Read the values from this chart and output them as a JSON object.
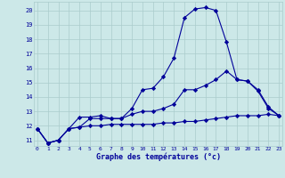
{
  "title": "Graphe des températures (°c)",
  "background_color": "#cce8e8",
  "grid_color": "#aacccc",
  "line_color": "#000099",
  "x_ticks": [
    0,
    1,
    2,
    3,
    4,
    5,
    6,
    7,
    8,
    9,
    10,
    11,
    12,
    13,
    14,
    15,
    16,
    17,
    18,
    19,
    20,
    21,
    22,
    23
  ],
  "y_ticks": [
    11,
    12,
    13,
    14,
    15,
    16,
    17,
    18,
    19,
    20
  ],
  "xlim": [
    -0.3,
    23.3
  ],
  "ylim": [
    10.6,
    20.6
  ],
  "line1_x": [
    0,
    1,
    2,
    3,
    4,
    5,
    6,
    7,
    8,
    9,
    10,
    11,
    12,
    13,
    14,
    15,
    16,
    17,
    18,
    19,
    20,
    21,
    22,
    23
  ],
  "line1_y": [
    11.8,
    10.8,
    11.0,
    11.8,
    12.6,
    12.6,
    12.7,
    12.5,
    12.5,
    13.2,
    14.5,
    14.6,
    15.4,
    16.7,
    19.5,
    20.1,
    20.2,
    20.0,
    17.8,
    15.2,
    15.1,
    14.4,
    13.2,
    12.7
  ],
  "line2_x": [
    0,
    1,
    2,
    3,
    4,
    5,
    6,
    7,
    8,
    9,
    10,
    11,
    12,
    13,
    14,
    15,
    16,
    17,
    18,
    19,
    20,
    21,
    22,
    23
  ],
  "line2_y": [
    11.8,
    10.8,
    11.0,
    11.8,
    11.9,
    12.5,
    12.5,
    12.5,
    12.5,
    12.8,
    13.0,
    13.0,
    13.2,
    13.5,
    14.5,
    14.5,
    14.8,
    15.2,
    15.8,
    15.2,
    15.1,
    14.5,
    13.3,
    12.7
  ],
  "line3_x": [
    0,
    1,
    2,
    3,
    4,
    5,
    6,
    7,
    8,
    9,
    10,
    11,
    12,
    13,
    14,
    15,
    16,
    17,
    18,
    19,
    20,
    21,
    22,
    23
  ],
  "line3_y": [
    11.8,
    10.8,
    11.0,
    11.8,
    11.9,
    12.0,
    12.0,
    12.1,
    12.1,
    12.1,
    12.1,
    12.1,
    12.2,
    12.2,
    12.3,
    12.3,
    12.4,
    12.5,
    12.6,
    12.7,
    12.7,
    12.7,
    12.8,
    12.7
  ]
}
